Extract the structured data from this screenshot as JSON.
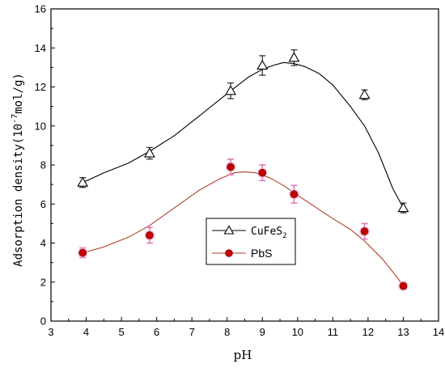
{
  "chart_data": {
    "type": "scatter",
    "xlabel": "pH",
    "ylabel_main": "Adsorption density(10",
    "ylabel_exp": "-7",
    "ylabel_unit": "mol/g)",
    "xlim": [
      3,
      14
    ],
    "ylim": [
      0,
      16
    ],
    "xticks": [
      "3",
      "4",
      "5",
      "6",
      "7",
      "8",
      "9",
      "10",
      "11",
      "12",
      "13",
      "14"
    ],
    "yticks": [
      "0",
      "2",
      "4",
      "6",
      "8",
      "10",
      "12",
      "14",
      "16"
    ],
    "legend_position": "center-right",
    "series": [
      {
        "name": "CuFeS",
        "name_sub": "2",
        "marker": "open-triangle",
        "color": "#000000",
        "x": [
          3.9,
          5.8,
          8.1,
          9.0,
          9.9,
          11.9,
          13.0
        ],
        "y": [
          7.1,
          8.6,
          11.8,
          13.1,
          13.5,
          11.6,
          5.8
        ],
        "err": [
          0.25,
          0.3,
          0.4,
          0.5,
          0.4,
          0.25,
          0.25
        ],
        "fit_x": [
          3.9,
          4.5,
          5.2,
          5.8,
          6.5,
          7.2,
          8.1,
          8.6,
          9.0,
          9.3,
          9.6,
          9.9,
          10.2,
          10.6,
          11.0,
          11.5,
          11.9,
          12.3,
          12.7,
          13.0
        ],
        "fit_y": [
          7.1,
          7.6,
          8.1,
          8.7,
          9.5,
          10.5,
          11.8,
          12.5,
          12.9,
          13.1,
          13.25,
          13.2,
          13.05,
          12.7,
          12.1,
          11.0,
          10.0,
          8.6,
          6.8,
          5.8
        ]
      },
      {
        "name": "PbS",
        "marker": "filled-circle",
        "color": "#c00000",
        "line_color": "#b0402a",
        "x": [
          3.9,
          5.8,
          8.1,
          9.0,
          9.9,
          11.9,
          13.0
        ],
        "y": [
          3.5,
          4.4,
          7.9,
          7.6,
          6.5,
          4.6,
          1.8
        ],
        "err": [
          0.25,
          0.4,
          0.4,
          0.4,
          0.45,
          0.4,
          0.15
        ],
        "fit_x": [
          3.9,
          4.5,
          5.2,
          5.8,
          6.5,
          7.2,
          7.8,
          8.2,
          8.5,
          8.8,
          9.2,
          9.6,
          10.0,
          10.5,
          11.0,
          11.5,
          11.9,
          12.4,
          12.8,
          13.0
        ],
        "fit_y": [
          3.5,
          3.8,
          4.3,
          4.9,
          5.8,
          6.7,
          7.3,
          7.6,
          7.65,
          7.6,
          7.35,
          6.95,
          6.45,
          5.85,
          5.25,
          4.7,
          4.1,
          3.2,
          2.3,
          1.8
        ]
      }
    ]
  }
}
